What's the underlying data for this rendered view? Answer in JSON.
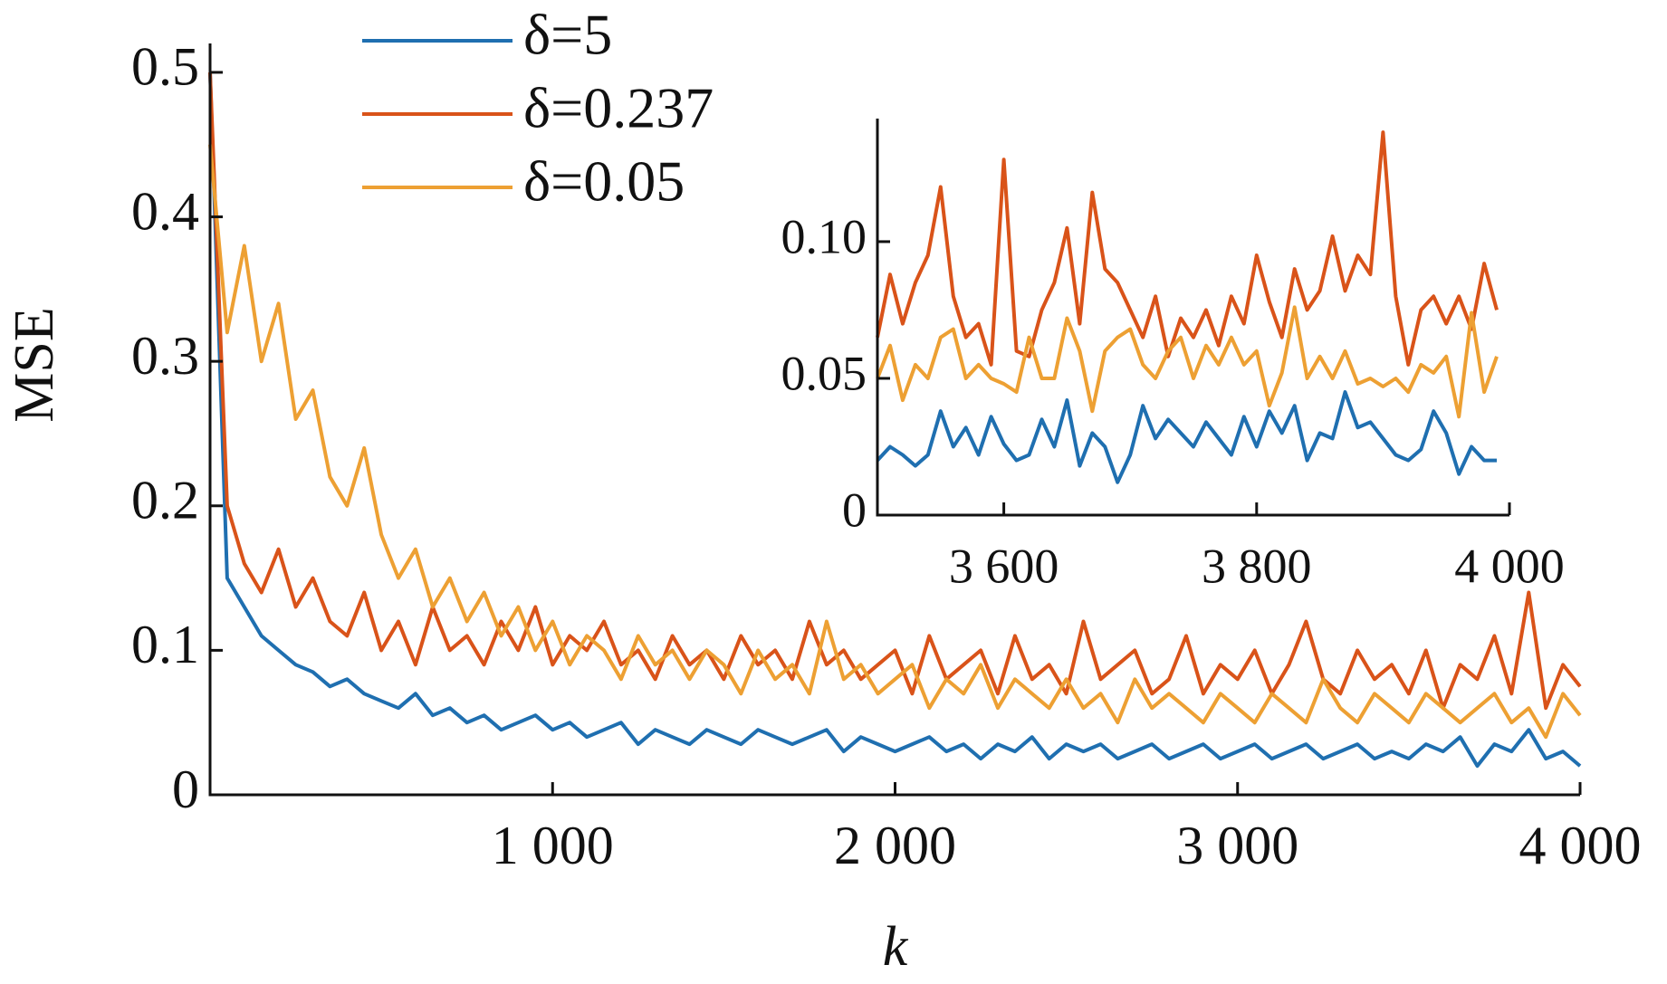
{
  "chart_data": [
    {
      "type": "line",
      "xlabel": "k",
      "ylabel": "MSE",
      "x": [
        0,
        50,
        100,
        150,
        200,
        250,
        300,
        350,
        400,
        450,
        500,
        550,
        600,
        650,
        700,
        750,
        800,
        850,
        900,
        950,
        1000,
        1050,
        1100,
        1150,
        1200,
        1250,
        1300,
        1350,
        1400,
        1450,
        1500,
        1550,
        1600,
        1650,
        1700,
        1750,
        1800,
        1850,
        1900,
        1950,
        2000,
        2050,
        2100,
        2150,
        2200,
        2250,
        2300,
        2350,
        2400,
        2450,
        2500,
        2550,
        2600,
        2650,
        2700,
        2750,
        2800,
        2850,
        2900,
        2950,
        3000,
        3050,
        3100,
        3150,
        3200,
        3250,
        3300,
        3350,
        3400,
        3450,
        3500,
        3550,
        3600,
        3650,
        3700,
        3750,
        3800,
        3850,
        3900,
        3950,
        4000
      ],
      "series": [
        {
          "name": "δ=5",
          "color": "#1f6fb0",
          "values": [
            0.5,
            0.15,
            0.13,
            0.11,
            0.1,
            0.09,
            0.085,
            0.075,
            0.08,
            0.07,
            0.065,
            0.06,
            0.07,
            0.055,
            0.06,
            0.05,
            0.055,
            0.045,
            0.05,
            0.055,
            0.045,
            0.05,
            0.04,
            0.045,
            0.05,
            0.035,
            0.045,
            0.04,
            0.035,
            0.045,
            0.04,
            0.035,
            0.045,
            0.04,
            0.035,
            0.04,
            0.045,
            0.03,
            0.04,
            0.035,
            0.03,
            0.035,
            0.04,
            0.03,
            0.035,
            0.025,
            0.035,
            0.03,
            0.04,
            0.025,
            0.035,
            0.03,
            0.035,
            0.025,
            0.03,
            0.035,
            0.025,
            0.03,
            0.035,
            0.025,
            0.03,
            0.035,
            0.025,
            0.03,
            0.035,
            0.025,
            0.03,
            0.035,
            0.025,
            0.03,
            0.025,
            0.035,
            0.03,
            0.04,
            0.02,
            0.035,
            0.03,
            0.045,
            0.025,
            0.03,
            0.02
          ]
        },
        {
          "name": "δ=0.237",
          "color": "#d95319",
          "values": [
            0.5,
            0.2,
            0.16,
            0.14,
            0.17,
            0.13,
            0.15,
            0.12,
            0.11,
            0.14,
            0.1,
            0.12,
            0.09,
            0.13,
            0.1,
            0.11,
            0.09,
            0.12,
            0.1,
            0.13,
            0.09,
            0.11,
            0.1,
            0.12,
            0.09,
            0.1,
            0.08,
            0.11,
            0.09,
            0.1,
            0.08,
            0.11,
            0.09,
            0.1,
            0.08,
            0.12,
            0.09,
            0.1,
            0.08,
            0.09,
            0.1,
            0.07,
            0.11,
            0.08,
            0.09,
            0.1,
            0.07,
            0.11,
            0.08,
            0.09,
            0.07,
            0.12,
            0.08,
            0.09,
            0.1,
            0.07,
            0.08,
            0.11,
            0.07,
            0.09,
            0.08,
            0.1,
            0.07,
            0.09,
            0.12,
            0.08,
            0.07,
            0.1,
            0.08,
            0.09,
            0.07,
            0.1,
            0.06,
            0.09,
            0.08,
            0.11,
            0.07,
            0.14,
            0.06,
            0.09,
            0.075
          ]
        },
        {
          "name": "δ=0.05",
          "color": "#eda033",
          "values": [
            0.45,
            0.32,
            0.38,
            0.3,
            0.34,
            0.26,
            0.28,
            0.22,
            0.2,
            0.24,
            0.18,
            0.15,
            0.17,
            0.13,
            0.15,
            0.12,
            0.14,
            0.11,
            0.13,
            0.1,
            0.12,
            0.09,
            0.11,
            0.1,
            0.08,
            0.11,
            0.09,
            0.1,
            0.08,
            0.1,
            0.09,
            0.07,
            0.1,
            0.08,
            0.09,
            0.07,
            0.12,
            0.08,
            0.09,
            0.07,
            0.08,
            0.09,
            0.06,
            0.08,
            0.07,
            0.09,
            0.06,
            0.08,
            0.07,
            0.06,
            0.08,
            0.06,
            0.07,
            0.05,
            0.08,
            0.06,
            0.07,
            0.06,
            0.05,
            0.07,
            0.06,
            0.05,
            0.07,
            0.06,
            0.05,
            0.08,
            0.06,
            0.05,
            0.07,
            0.06,
            0.05,
            0.07,
            0.06,
            0.05,
            0.06,
            0.07,
            0.05,
            0.06,
            0.04,
            0.07,
            0.055
          ]
        }
      ],
      "xlim": [
        0,
        4000
      ],
      "ylim": [
        0,
        0.52
      ],
      "xticks": [
        {
          "value": 1000,
          "label": "1 000"
        },
        {
          "value": 2000,
          "label": "2 000"
        },
        {
          "value": 3000,
          "label": "3 000"
        },
        {
          "value": 4000,
          "label": "4 000"
        }
      ],
      "yticks": [
        0,
        0.1,
        0.2,
        0.3,
        0.4,
        0.5
      ],
      "grid": false,
      "legend": "top"
    },
    {
      "type": "line",
      "x": [
        3500,
        3510,
        3520,
        3530,
        3540,
        3550,
        3560,
        3570,
        3580,
        3590,
        3600,
        3610,
        3620,
        3630,
        3640,
        3650,
        3660,
        3670,
        3680,
        3690,
        3700,
        3710,
        3720,
        3730,
        3740,
        3750,
        3760,
        3770,
        3780,
        3790,
        3800,
        3810,
        3820,
        3830,
        3840,
        3850,
        3860,
        3870,
        3880,
        3890,
        3900,
        3910,
        3920,
        3930,
        3940,
        3950,
        3960,
        3970,
        3980,
        3990
      ],
      "series": [
        {
          "color": "#1f6fb0",
          "values": [
            0.02,
            0.025,
            0.022,
            0.018,
            0.022,
            0.038,
            0.025,
            0.032,
            0.022,
            0.036,
            0.026,
            0.02,
            0.022,
            0.035,
            0.025,
            0.042,
            0.018,
            0.03,
            0.025,
            0.012,
            0.022,
            0.04,
            0.028,
            0.035,
            0.03,
            0.025,
            0.034,
            0.028,
            0.022,
            0.036,
            0.025,
            0.038,
            0.03,
            0.04,
            0.02,
            0.03,
            0.028,
            0.045,
            0.032,
            0.034,
            0.028,
            0.022,
            0.02,
            0.024,
            0.038,
            0.03,
            0.015,
            0.025,
            0.02,
            0.02
          ]
        },
        {
          "color": "#d95319",
          "values": [
            0.065,
            0.088,
            0.07,
            0.085,
            0.095,
            0.12,
            0.08,
            0.065,
            0.07,
            0.055,
            0.13,
            0.06,
            0.058,
            0.075,
            0.085,
            0.105,
            0.07,
            0.118,
            0.09,
            0.085,
            0.075,
            0.065,
            0.08,
            0.058,
            0.072,
            0.065,
            0.075,
            0.062,
            0.08,
            0.07,
            0.095,
            0.078,
            0.065,
            0.09,
            0.075,
            0.082,
            0.102,
            0.082,
            0.095,
            0.088,
            0.14,
            0.08,
            0.055,
            0.075,
            0.08,
            0.07,
            0.08,
            0.068,
            0.092,
            0.075
          ]
        },
        {
          "color": "#eda033",
          "values": [
            0.05,
            0.062,
            0.042,
            0.055,
            0.05,
            0.065,
            0.068,
            0.05,
            0.055,
            0.05,
            0.048,
            0.045,
            0.065,
            0.05,
            0.05,
            0.072,
            0.06,
            0.038,
            0.06,
            0.065,
            0.068,
            0.055,
            0.05,
            0.06,
            0.065,
            0.05,
            0.062,
            0.055,
            0.065,
            0.055,
            0.06,
            0.04,
            0.052,
            0.076,
            0.05,
            0.058,
            0.05,
            0.06,
            0.048,
            0.05,
            0.047,
            0.05,
            0.045,
            0.055,
            0.052,
            0.058,
            0.036,
            0.074,
            0.045,
            0.058
          ]
        }
      ],
      "xlim": [
        3500,
        4000
      ],
      "ylim": [
        0,
        0.145
      ],
      "xticks": [
        {
          "value": 3600,
          "label": "3 600"
        },
        {
          "value": 3800,
          "label": "3 800"
        },
        {
          "value": 4000,
          "label": "4 000"
        }
      ],
      "yticks": [
        0,
        0.05,
        {
          "value": 0.1,
          "label": "0.10"
        }
      ],
      "grid": false
    }
  ]
}
